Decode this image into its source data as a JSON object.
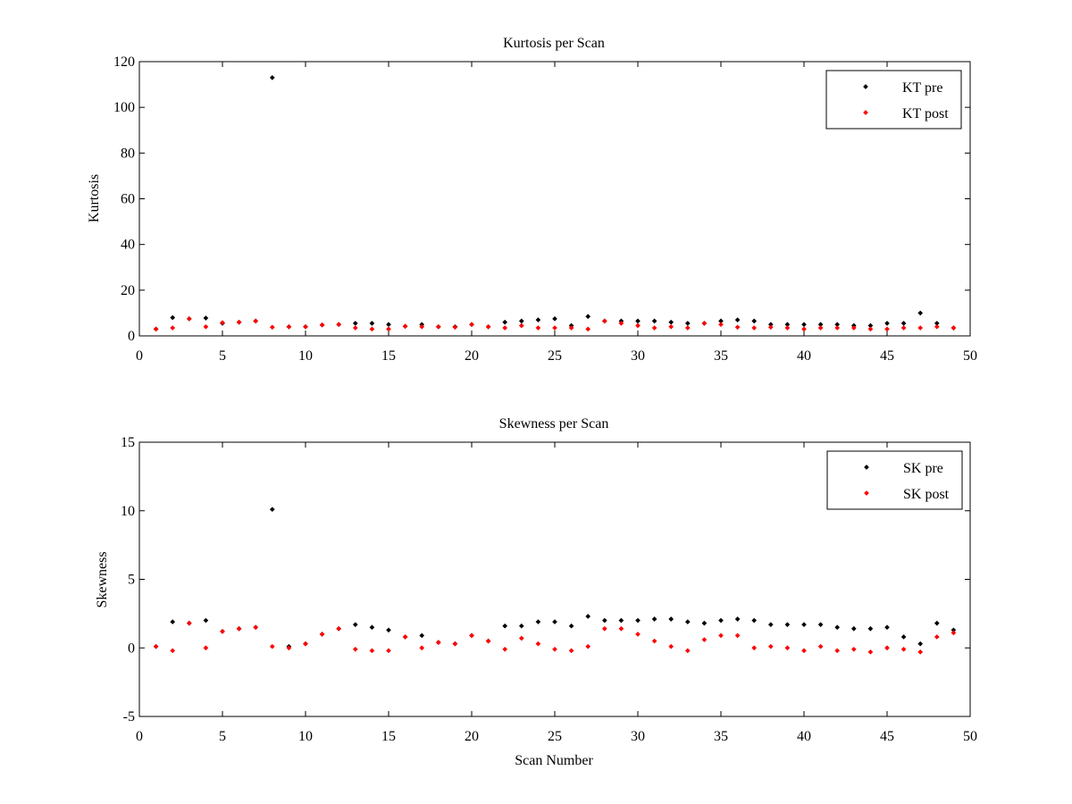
{
  "chart_data": [
    {
      "type": "scatter",
      "title": "Kurtosis per Scan",
      "xlabel": "",
      "ylabel": "Kurtosis",
      "xlim": [
        0,
        50
      ],
      "ylim": [
        0,
        120
      ],
      "xticks": [
        0,
        5,
        10,
        15,
        20,
        25,
        30,
        35,
        40,
        45,
        50
      ],
      "yticks": [
        0,
        20,
        40,
        60,
        80,
        100,
        120
      ],
      "legend_position": "top-right",
      "grid": false,
      "series": [
        {
          "name": "KT pre",
          "color": "#000000",
          "points": [
            [
              1,
              3.0
            ],
            [
              2,
              8.0
            ],
            [
              3,
              7.5
            ],
            [
              4,
              7.8
            ],
            [
              5,
              5.5
            ],
            [
              6,
              6.0
            ],
            [
              7,
              6.5
            ],
            [
              8,
              113.0
            ],
            [
              9,
              4.0
            ],
            [
              10,
              4.0
            ],
            [
              11,
              4.8
            ],
            [
              12,
              5.0
            ],
            [
              13,
              5.5
            ],
            [
              14,
              5.5
            ],
            [
              15,
              5.0
            ],
            [
              16,
              4.2
            ],
            [
              17,
              5.0
            ],
            [
              18,
              4.0
            ],
            [
              19,
              4.0
            ],
            [
              20,
              5.0
            ],
            [
              21,
              4.0
            ],
            [
              22,
              6.0
            ],
            [
              23,
              6.5
            ],
            [
              24,
              7.0
            ],
            [
              25,
              7.5
            ],
            [
              26,
              4.5
            ],
            [
              27,
              8.5
            ],
            [
              28,
              6.5
            ],
            [
              29,
              6.5
            ],
            [
              30,
              6.5
            ],
            [
              31,
              6.5
            ],
            [
              32,
              6.0
            ],
            [
              33,
              5.5
            ],
            [
              34,
              5.5
            ],
            [
              35,
              6.5
            ],
            [
              36,
              7.0
            ],
            [
              37,
              6.5
            ],
            [
              38,
              5.0
            ],
            [
              39,
              5.0
            ],
            [
              40,
              5.0
            ],
            [
              41,
              5.0
            ],
            [
              42,
              5.0
            ],
            [
              43,
              4.5
            ],
            [
              44,
              4.5
            ],
            [
              45,
              5.5
            ],
            [
              46,
              5.5
            ],
            [
              47,
              10.0
            ],
            [
              48,
              5.5
            ],
            [
              49,
              3.5
            ]
          ]
        },
        {
          "name": "KT post",
          "color": "#ff0000",
          "points": [
            [
              1,
              3.0
            ],
            [
              2,
              3.5
            ],
            [
              3,
              7.5
            ],
            [
              4,
              4.0
            ],
            [
              5,
              5.8
            ],
            [
              6,
              6.0
            ],
            [
              7,
              6.5
            ],
            [
              8,
              3.8
            ],
            [
              9,
              4.0
            ],
            [
              10,
              4.0
            ],
            [
              11,
              4.8
            ],
            [
              12,
              5.0
            ],
            [
              13,
              3.5
            ],
            [
              14,
              3.0
            ],
            [
              15,
              3.0
            ],
            [
              16,
              4.2
            ],
            [
              17,
              4.0
            ],
            [
              18,
              4.0
            ],
            [
              19,
              3.8
            ],
            [
              20,
              5.0
            ],
            [
              21,
              4.0
            ],
            [
              22,
              3.5
            ],
            [
              23,
              4.5
            ],
            [
              24,
              3.5
            ],
            [
              25,
              3.5
            ],
            [
              26,
              3.5
            ],
            [
              27,
              3.0
            ],
            [
              28,
              6.5
            ],
            [
              29,
              5.5
            ],
            [
              30,
              4.5
            ],
            [
              31,
              3.5
            ],
            [
              32,
              4.0
            ],
            [
              33,
              3.5
            ],
            [
              34,
              5.5
            ],
            [
              35,
              5.0
            ],
            [
              36,
              3.8
            ],
            [
              37,
              3.5
            ],
            [
              38,
              3.8
            ],
            [
              39,
              3.5
            ],
            [
              40,
              3.0
            ],
            [
              41,
              3.5
            ],
            [
              42,
              3.5
            ],
            [
              43,
              3.5
            ],
            [
              44,
              3.0
            ],
            [
              45,
              3.0
            ],
            [
              46,
              3.5
            ],
            [
              47,
              3.5
            ],
            [
              48,
              4.0
            ],
            [
              49,
              3.5
            ]
          ]
        }
      ]
    },
    {
      "type": "scatter",
      "title": "Skewness per Scan",
      "xlabel": "Scan Number",
      "ylabel": "Skewness",
      "xlim": [
        0,
        50
      ],
      "ylim": [
        -5,
        15
      ],
      "xticks": [
        0,
        5,
        10,
        15,
        20,
        25,
        30,
        35,
        40,
        45,
        50
      ],
      "yticks": [
        -5,
        0,
        5,
        10,
        15
      ],
      "legend_position": "top-right",
      "grid": false,
      "series": [
        {
          "name": "SK pre",
          "color": "#000000",
          "points": [
            [
              1,
              0.1
            ],
            [
              2,
              1.9
            ],
            [
              3,
              1.8
            ],
            [
              4,
              2.0
            ],
            [
              5,
              1.2
            ],
            [
              6,
              1.4
            ],
            [
              7,
              1.5
            ],
            [
              8,
              10.1
            ],
            [
              9,
              0.1
            ],
            [
              10,
              0.3
            ],
            [
              11,
              1.0
            ],
            [
              12,
              1.4
            ],
            [
              13,
              1.7
            ],
            [
              14,
              1.5
            ],
            [
              15,
              1.3
            ],
            [
              16,
              0.8
            ],
            [
              17,
              0.9
            ],
            [
              18,
              0.4
            ],
            [
              19,
              0.3
            ],
            [
              20,
              0.9
            ],
            [
              21,
              0.5
            ],
            [
              22,
              1.6
            ],
            [
              23,
              1.6
            ],
            [
              24,
              1.9
            ],
            [
              25,
              1.9
            ],
            [
              26,
              1.6
            ],
            [
              27,
              2.3
            ],
            [
              28,
              2.0
            ],
            [
              29,
              2.0
            ],
            [
              30,
              2.0
            ],
            [
              31,
              2.1
            ],
            [
              32,
              2.1
            ],
            [
              33,
              1.9
            ],
            [
              34,
              1.8
            ],
            [
              35,
              2.0
            ],
            [
              36,
              2.1
            ],
            [
              37,
              2.0
            ],
            [
              38,
              1.7
            ],
            [
              39,
              1.7
            ],
            [
              40,
              1.7
            ],
            [
              41,
              1.7
            ],
            [
              42,
              1.5
            ],
            [
              43,
              1.4
            ],
            [
              44,
              1.4
            ],
            [
              45,
              1.5
            ],
            [
              46,
              0.8
            ],
            [
              47,
              0.3
            ],
            [
              48,
              1.8
            ],
            [
              49,
              1.3
            ]
          ]
        },
        {
          "name": "SK post",
          "color": "#ff0000",
          "points": [
            [
              1,
              0.1
            ],
            [
              2,
              -0.2
            ],
            [
              3,
              1.8
            ],
            [
              4,
              0.0
            ],
            [
              5,
              1.2
            ],
            [
              6,
              1.4
            ],
            [
              7,
              1.5
            ],
            [
              8,
              0.1
            ],
            [
              9,
              0.0
            ],
            [
              10,
              0.3
            ],
            [
              11,
              1.0
            ],
            [
              12,
              1.4
            ],
            [
              13,
              -0.1
            ],
            [
              14,
              -0.2
            ],
            [
              15,
              -0.2
            ],
            [
              16,
              0.8
            ],
            [
              17,
              0.0
            ],
            [
              18,
              0.4
            ],
            [
              19,
              0.3
            ],
            [
              20,
              0.9
            ],
            [
              21,
              0.5
            ],
            [
              22,
              -0.1
            ],
            [
              23,
              0.7
            ],
            [
              24,
              0.3
            ],
            [
              25,
              -0.1
            ],
            [
              26,
              -0.2
            ],
            [
              27,
              0.1
            ],
            [
              28,
              1.4
            ],
            [
              29,
              1.4
            ],
            [
              30,
              1.0
            ],
            [
              31,
              0.5
            ],
            [
              32,
              0.1
            ],
            [
              33,
              -0.2
            ],
            [
              34,
              0.6
            ],
            [
              35,
              0.9
            ],
            [
              36,
              0.9
            ],
            [
              37,
              0.0
            ],
            [
              38,
              0.1
            ],
            [
              39,
              0.0
            ],
            [
              40,
              -0.2
            ],
            [
              41,
              0.1
            ],
            [
              42,
              -0.2
            ],
            [
              43,
              -0.1
            ],
            [
              44,
              -0.3
            ],
            [
              45,
              0.0
            ],
            [
              46,
              -0.1
            ],
            [
              47,
              -0.3
            ],
            [
              48,
              0.8
            ],
            [
              49,
              1.1
            ]
          ]
        }
      ]
    }
  ]
}
